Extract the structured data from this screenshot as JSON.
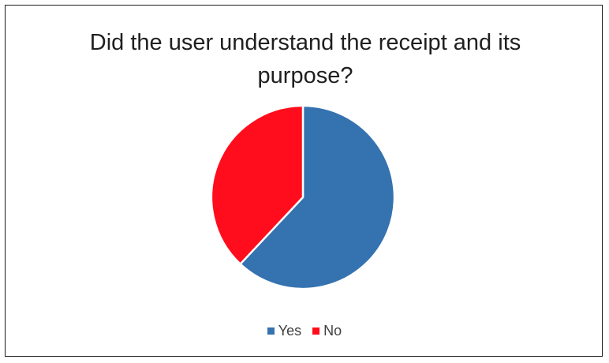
{
  "chart_data": {
    "type": "pie",
    "title": "Did the user understand the receipt and its purpose?",
    "categories": [
      "Yes",
      "No"
    ],
    "values": [
      62,
      38
    ],
    "colors": [
      "#3572B0",
      "#FF0D1C"
    ],
    "start_angle_deg": 0,
    "direction": "clockwise",
    "legend_position": "bottom"
  }
}
